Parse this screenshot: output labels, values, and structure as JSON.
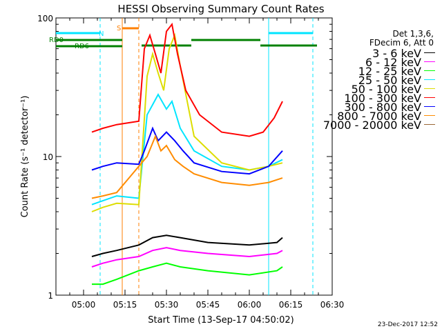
{
  "colors": {
    "axis": "#000000",
    "n_flag": "#00e5ff",
    "s_flag": "#ff7f00",
    "rd_flag": "#008000"
  },
  "chart_data": {
    "type": "line",
    "title": "HESSI Observing Summary Count Rates",
    "xlabel": "Start Time (13-Sep-17 04:50:02)",
    "ylabel": "Count Rate (s⁻¹ detector⁻¹)",
    "ylim": [
      1,
      100
    ],
    "yscale": "log",
    "xlim_minutes_axis": [
      "04:50",
      "06:30"
    ],
    "xtick_labels": [
      "05:00",
      "05:15",
      "05:30",
      "05:45",
      "06:00",
      "06:15",
      "06:30"
    ],
    "ytick_labels": [
      "1",
      "10",
      "100"
    ],
    "grid": false,
    "legend_position": "right",
    "legend_header": [
      "Det 1,3,6,",
      "FDecim 6, Att 0"
    ],
    "series": [
      {
        "name": "3 - 6 keV",
        "color": "#000000",
        "x": [
          "05:03",
          "05:07",
          "05:12",
          "05:20",
          "05:25",
          "05:30",
          "05:35",
          "05:45",
          "06:00",
          "06:10",
          "06:12"
        ],
        "y": [
          1.9,
          2.0,
          2.1,
          2.3,
          2.6,
          2.7,
          2.6,
          2.4,
          2.3,
          2.4,
          2.6
        ]
      },
      {
        "name": "6 - 12 keV",
        "color": "#ff00ff",
        "x": [
          "05:03",
          "05:07",
          "05:12",
          "05:20",
          "05:25",
          "05:30",
          "05:35",
          "05:45",
          "06:00",
          "06:10",
          "06:12"
        ],
        "y": [
          1.6,
          1.7,
          1.8,
          1.9,
          2.1,
          2.2,
          2.1,
          2.0,
          1.9,
          2.0,
          2.1
        ]
      },
      {
        "name": "12 - 25 keV",
        "color": "#00ff00",
        "x": [
          "05:03",
          "05:07",
          "05:12",
          "05:20",
          "05:25",
          "05:30",
          "05:35",
          "05:45",
          "06:00",
          "06:10",
          "06:12"
        ],
        "y": [
          1.2,
          1.2,
          1.3,
          1.5,
          1.6,
          1.7,
          1.6,
          1.5,
          1.4,
          1.5,
          1.6
        ]
      },
      {
        "name": "25 - 50 keV",
        "color": "#00e5ff",
        "x": [
          "05:03",
          "05:07",
          "05:12",
          "05:20",
          "05:23",
          "05:27",
          "05:30",
          "05:32",
          "05:35",
          "05:40",
          "05:50",
          "06:00",
          "06:07",
          "06:12"
        ],
        "y": [
          4.5,
          4.8,
          5.2,
          5.0,
          20,
          28,
          22,
          25,
          16,
          11,
          8.5,
          8.0,
          8.5,
          9.5
        ]
      },
      {
        "name": "50 - 100 keV",
        "color": "#dddd00",
        "x": [
          "05:03",
          "05:07",
          "05:12",
          "05:20",
          "05:23",
          "05:25",
          "05:27",
          "05:29",
          "05:31",
          "05:33",
          "05:35",
          "05:40",
          "05:50",
          "06:00",
          "06:07",
          "06:12"
        ],
        "y": [
          4.0,
          4.3,
          4.6,
          4.5,
          38,
          55,
          40,
          30,
          60,
          75,
          45,
          14,
          9.0,
          8.0,
          8.5,
          9.0
        ]
      },
      {
        "name": "100 - 300 keV",
        "color": "#ff0000",
        "x": [
          "05:03",
          "05:07",
          "05:12",
          "05:20",
          "05:22",
          "05:24",
          "05:26",
          "05:28",
          "05:30",
          "05:32",
          "05:34",
          "05:37",
          "05:42",
          "05:50",
          "06:00",
          "06:05",
          "06:09",
          "06:12"
        ],
        "y": [
          15,
          16,
          17,
          18,
          60,
          75,
          55,
          40,
          80,
          90,
          55,
          30,
          20,
          15,
          14,
          15,
          19,
          25
        ]
      },
      {
        "name": "300 - 800 keV",
        "color": "#0000ff",
        "x": [
          "05:03",
          "05:07",
          "05:12",
          "05:20",
          "05:22",
          "05:25",
          "05:27",
          "05:30",
          "05:33",
          "05:36",
          "05:40",
          "05:50",
          "06:00",
          "06:07",
          "06:12"
        ],
        "y": [
          8.0,
          8.5,
          9.0,
          8.8,
          11,
          16,
          13,
          15,
          13,
          11,
          9.0,
          7.8,
          7.5,
          8.5,
          11
        ]
      },
      {
        "name": "800 - 7000 keV",
        "color": "#ff8c00",
        "x": [
          "05:03",
          "05:07",
          "05:12",
          "05:20",
          "05:23",
          "05:26",
          "05:28",
          "05:30",
          "05:33",
          "05:36",
          "05:40",
          "05:50",
          "06:00",
          "06:07",
          "06:12"
        ],
        "y": [
          5.0,
          5.2,
          5.5,
          8.5,
          10,
          14,
          11,
          12,
          9.5,
          8.5,
          7.5,
          6.5,
          6.2,
          6.5,
          7.0
        ]
      },
      {
        "name": "7000 - 20000 keV",
        "color": "#996633",
        "x": [],
        "y": []
      }
    ],
    "flag_labels": {
      "n": "N",
      "s": "S",
      "rd0": "RD0",
      "rd6": "RD6"
    }
  },
  "footer": {
    "timestamp": "23-Dec-2017 12:52"
  }
}
